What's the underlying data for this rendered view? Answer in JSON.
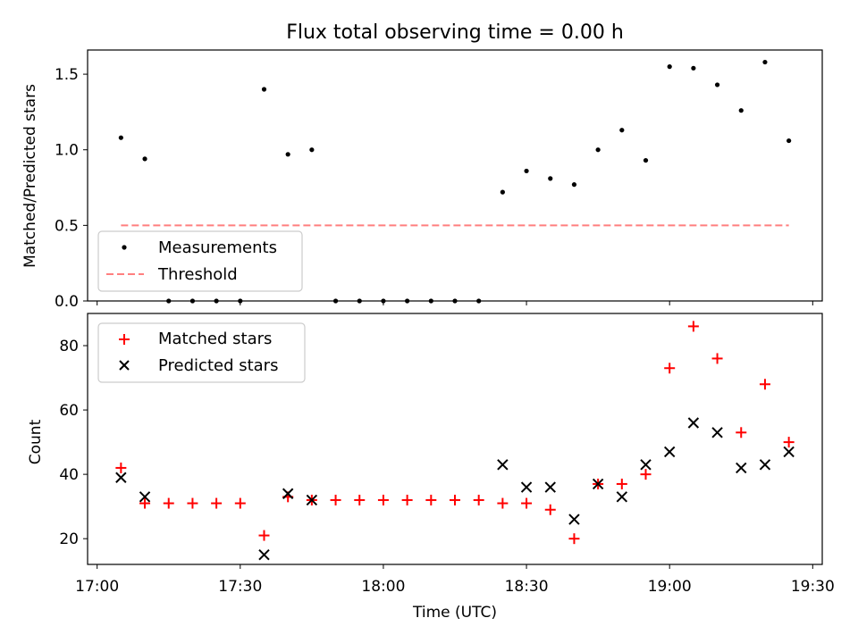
{
  "chart_data": [
    {
      "type": "scatter",
      "title": "Flux total observing time = 0.00 h",
      "xlabel": "",
      "ylabel": "Matched/Predicted stars",
      "xlim": [
        "16:58",
        "19:32"
      ],
      "ylim": [
        0,
        1.66
      ],
      "x_ticks": [
        "17:00",
        "17:30",
        "18:00",
        "18:30",
        "19:00",
        "19:30"
      ],
      "y_ticks": [
        0.0,
        0.5,
        1.0,
        1.5
      ],
      "y_tick_labels": [
        "0.0",
        "0.5",
        "1.0",
        "1.5"
      ],
      "legend": "lower-left",
      "series": [
        {
          "name": "Measurements",
          "marker": "dot",
          "color": "#000000",
          "x": [
            "17:05",
            "17:10",
            "17:15",
            "17:20",
            "17:25",
            "17:30",
            "17:35",
            "17:40",
            "17:45",
            "17:50",
            "17:55",
            "18:00",
            "18:05",
            "18:10",
            "18:15",
            "18:20",
            "18:25",
            "18:30",
            "18:35",
            "18:40",
            "18:45",
            "18:50",
            "18:55",
            "19:00",
            "19:05",
            "19:10",
            "19:15",
            "19:20",
            "19:25"
          ],
          "values": [
            1.08,
            0.94,
            0,
            0,
            0,
            0,
            1.4,
            0.97,
            1.0,
            0,
            0,
            0,
            0,
            0,
            0,
            0,
            0.72,
            0.86,
            0.81,
            0.77,
            1.0,
            1.13,
            0.93,
            1.55,
            1.54,
            1.43,
            1.26,
            1.58,
            1.06
          ]
        },
        {
          "name": "Threshold",
          "marker": "dashed-line",
          "color": "#ff7f7f",
          "x": [
            "17:05",
            "19:25"
          ],
          "values": [
            0.5,
            0.5
          ]
        }
      ]
    },
    {
      "type": "scatter",
      "title": "",
      "xlabel": "Time (UTC)",
      "ylabel": "Count",
      "xlim": [
        "16:58",
        "19:32"
      ],
      "ylim": [
        12,
        90
      ],
      "x_ticks": [
        "17:00",
        "17:30",
        "18:00",
        "18:30",
        "19:00",
        "19:30"
      ],
      "y_ticks": [
        20,
        40,
        60,
        80
      ],
      "legend": "top-left",
      "series": [
        {
          "name": "Matched stars",
          "marker": "plus",
          "color": "#ff0000",
          "x": [
            "17:05",
            "17:10",
            "17:15",
            "17:20",
            "17:25",
            "17:30",
            "17:35",
            "17:40",
            "17:45",
            "17:50",
            "17:55",
            "18:00",
            "18:05",
            "18:10",
            "18:15",
            "18:20",
            "18:25",
            "18:30",
            "18:35",
            "18:40",
            "18:45",
            "18:50",
            "18:55",
            "19:00",
            "19:05",
            "19:10",
            "19:15",
            "19:20",
            "19:25"
          ],
          "values": [
            42,
            31,
            31,
            31,
            31,
            31,
            21,
            33,
            32,
            32,
            32,
            32,
            32,
            32,
            32,
            32,
            31,
            31,
            29,
            20,
            37,
            37,
            40,
            73,
            86,
            76,
            53,
            68,
            50
          ]
        },
        {
          "name": "Predicted stars",
          "marker": "x",
          "color": "#000000",
          "x": [
            "17:05",
            "17:10",
            "17:35",
            "17:40",
            "17:45",
            "18:25",
            "18:30",
            "18:35",
            "18:40",
            "18:45",
            "18:50",
            "18:55",
            "19:00",
            "19:05",
            "19:10",
            "19:15",
            "19:20",
            "19:25"
          ],
          "values": [
            39,
            33,
            15,
            34,
            32,
            43,
            36,
            36,
            26,
            37,
            33,
            43,
            47,
            56,
            53,
            42,
            43,
            47
          ]
        }
      ]
    }
  ]
}
